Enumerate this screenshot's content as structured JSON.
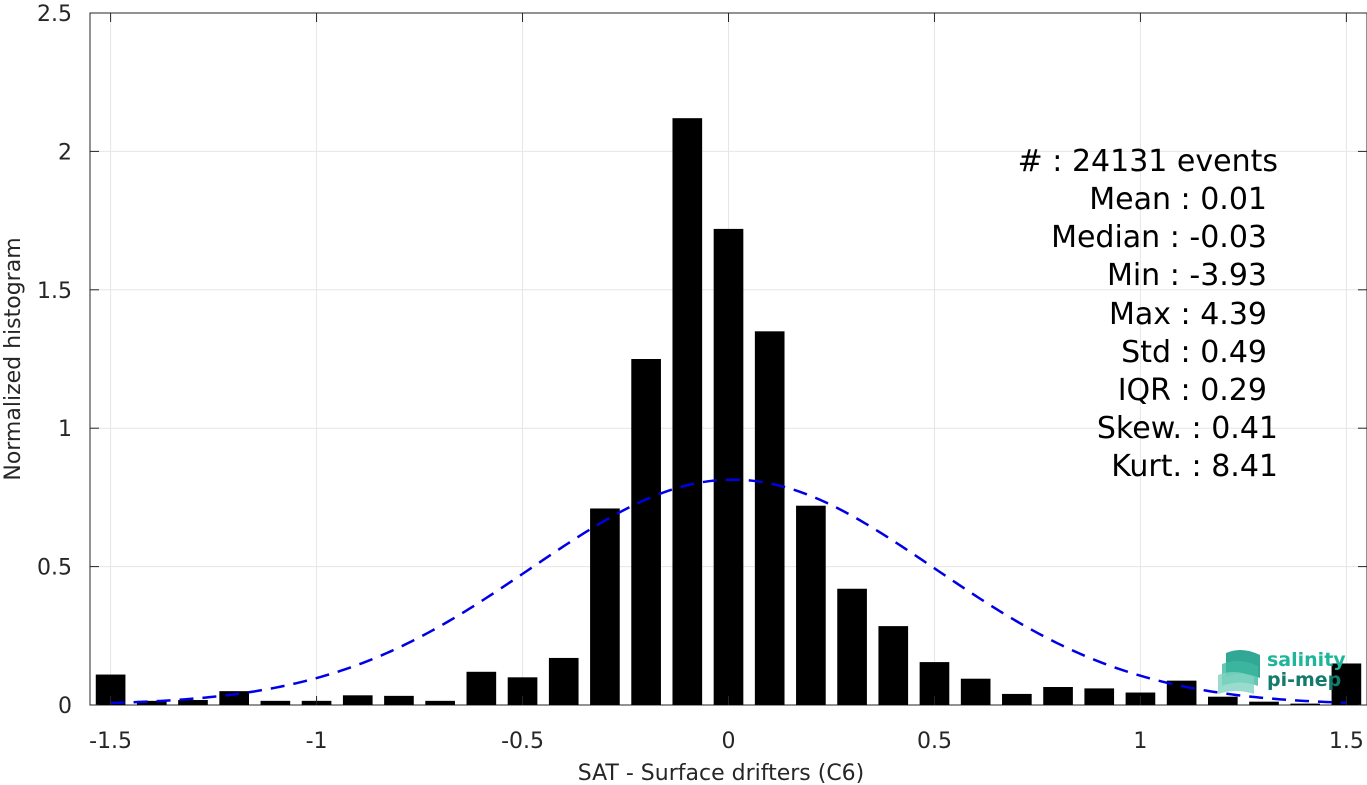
{
  "chart_data": {
    "type": "bar",
    "xlabel": "SAT - Surface drifters (C6)",
    "ylabel": "Normalized histogram",
    "xlim": [
      -1.55,
      1.55
    ],
    "ylim": [
      0,
      2.5
    ],
    "xticks": [
      -1.5,
      -1,
      -0.5,
      0,
      0.5,
      1,
      1.5
    ],
    "xtick_labels": [
      "-1.5",
      "-1",
      "-0.5",
      "0",
      "0.5",
      "1",
      "1.5"
    ],
    "yticks": [
      0,
      0.5,
      1,
      1.5,
      2,
      2.5
    ],
    "ytick_labels": [
      "0",
      "0.5",
      "1",
      "1.5",
      "2",
      "2.5"
    ],
    "grid": true,
    "bar_color": "#000000",
    "bins": {
      "x": [
        -1.5,
        -1.4,
        -1.3,
        -1.2,
        -1.1,
        -1.0,
        -0.9,
        -0.8,
        -0.7,
        -0.6,
        -0.5,
        -0.4,
        -0.3,
        -0.2,
        -0.1,
        0.0,
        0.1,
        0.2,
        0.3,
        0.4,
        0.5,
        0.6,
        0.7,
        0.8,
        0.9,
        1.0,
        1.1,
        1.2,
        1.3,
        1.4,
        1.5
      ],
      "values": [
        0.11,
        0.015,
        0.018,
        0.05,
        0.015,
        0.015,
        0.035,
        0.033,
        0.015,
        0.12,
        0.1,
        0.17,
        0.71,
        1.25,
        2.12,
        1.72,
        1.35,
        0.72,
        0.42,
        0.285,
        0.155,
        0.095,
        0.04,
        0.065,
        0.06,
        0.045,
        0.088,
        0.03,
        0.012,
        0.005,
        0.15
      ]
    },
    "fit": {
      "type": "gaussian",
      "mean": 0.01,
      "std": 0.49,
      "color": "#0000e6",
      "style": "dashed"
    },
    "annotations": [
      "#  : 24131 events",
      "Mean : 0.01",
      "Median : -0.03",
      "Min : -3.93",
      "Max : 4.39",
      "Std : 0.49",
      "IQR : 0.29",
      "Skew. : 0.41",
      "Kurt. : 8.41"
    ],
    "logo": [
      "salinity",
      "pi-mep"
    ]
  }
}
